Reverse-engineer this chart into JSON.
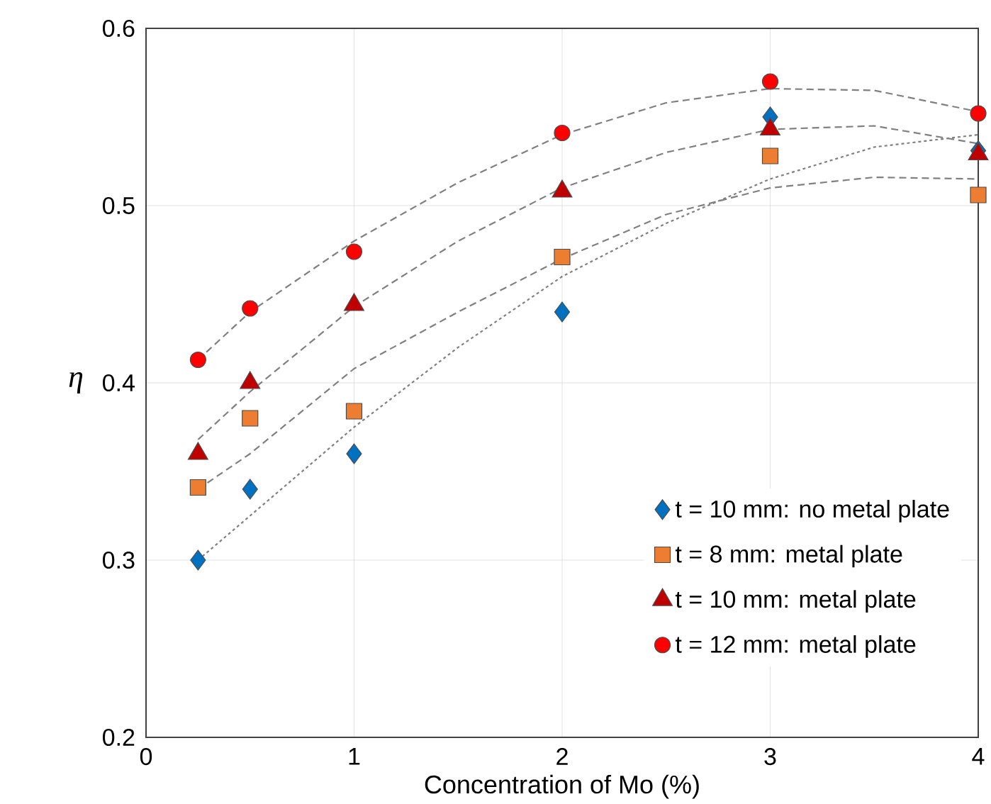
{
  "chart_data": {
    "type": "scatter",
    "xlabel": "Concentration of Mo (%)",
    "ylabel": "η",
    "xlim": [
      0,
      4
    ],
    "xticks": [
      0,
      1,
      2,
      3,
      4
    ],
    "ylim": [
      0.2,
      0.6
    ],
    "yticks": [
      0.2,
      0.3,
      0.4,
      0.5,
      0.6
    ],
    "grid": true,
    "legend": "bottom right",
    "x": [
      0.25,
      0.5,
      1,
      2,
      3,
      4
    ],
    "series": [
      {
        "name": "t = 10 mm: no metal plate",
        "color": "#0070c0",
        "marker": "diamond",
        "values": [
          0.3,
          0.34,
          0.36,
          0.44,
          0.55,
          0.531
        ]
      },
      {
        "name": "t = 8 mm: metal plate",
        "color": "#ed7d31",
        "marker": "square",
        "values": [
          0.341,
          0.38,
          0.384,
          0.471,
          0.528,
          0.506
        ]
      },
      {
        "name": "t = 10 mm: metal plate",
        "color": "#c00000",
        "marker": "triangle",
        "values": [
          0.36,
          0.4,
          0.444,
          0.508,
          0.543,
          0.529
        ]
      },
      {
        "name": "t = 12 mm: metal plate",
        "color": "#ff0000",
        "marker": "circle",
        "values": [
          0.413,
          0.442,
          0.474,
          0.541,
          0.57,
          0.552
        ]
      },
      {
        "type": "line",
        "color": "#808080",
        "marker": "none",
        "line_style": "dotted",
        "x": [
          0.25,
          0.5,
          1,
          1.5,
          2,
          2.5,
          3,
          3.5,
          4
        ],
        "values": [
          0.3,
          0.325,
          0.375,
          0.42,
          0.46,
          0.49,
          0.515,
          0.533,
          0.54
        ]
      },
      {
        "type": "line",
        "color": "#808080",
        "marker": "none",
        "line_style": "dashed",
        "x": [
          0.25,
          0.5,
          1,
          1.5,
          2,
          2.5,
          3,
          3.5,
          4
        ],
        "values": [
          0.34,
          0.36,
          0.408,
          0.44,
          0.47,
          0.495,
          0.51,
          0.516,
          0.515
        ]
      },
      {
        "type": "line",
        "color": "#808080",
        "marker": "none",
        "line_style": "dashed",
        "x": [
          0.25,
          0.5,
          1,
          1.5,
          2,
          2.5,
          3,
          3.5,
          4
        ],
        "values": [
          0.368,
          0.395,
          0.443,
          0.48,
          0.51,
          0.53,
          0.543,
          0.545,
          0.535
        ]
      },
      {
        "type": "line",
        "color": "#808080",
        "marker": "none",
        "line_style": "dashed",
        "x": [
          0.25,
          0.5,
          1,
          1.5,
          2,
          2.5,
          3,
          3.5,
          4
        ],
        "values": [
          0.413,
          0.44,
          0.48,
          0.513,
          0.54,
          0.558,
          0.566,
          0.565,
          0.553
        ]
      }
    ]
  }
}
